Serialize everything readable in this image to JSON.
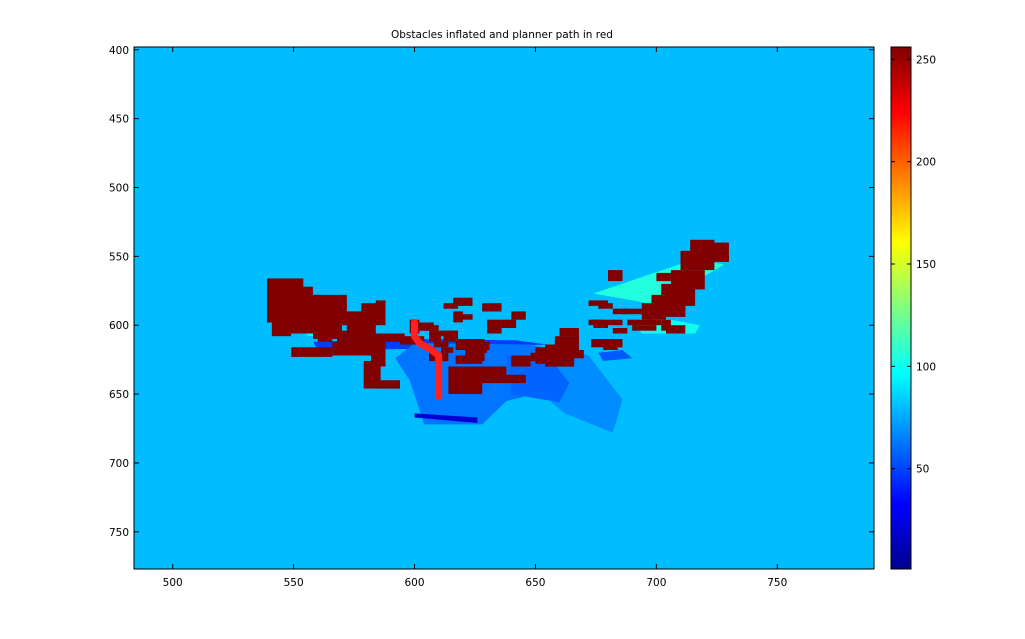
{
  "chart_data": {
    "type": "heatmap",
    "title": "Obstacles inflated and planner path in red",
    "colormap": "jet",
    "background_value": 80,
    "xlim": [
      484,
      790
    ],
    "ylim": [
      398,
      777
    ],
    "y_reversed": true,
    "x_ticks": [
      "500",
      "550",
      "600",
      "650",
      "700",
      "750"
    ],
    "y_ticks": [
      "400",
      "450",
      "500",
      "550",
      "600",
      "650",
      "700",
      "750"
    ],
    "colorbar": {
      "range": [
        1,
        256
      ],
      "ticks": [
        "50",
        "100",
        "150",
        "200",
        "250"
      ]
    },
    "scan_regions": [
      {
        "value": 105,
        "points": [
          [
            674,
            577
          ],
          [
            716,
            552
          ],
          [
            728,
            556
          ],
          [
            700,
            585
          ]
        ]
      },
      {
        "value": 100,
        "points": [
          [
            690,
            597
          ],
          [
            700,
            594
          ],
          [
            718,
            600
          ],
          [
            716,
            606
          ],
          [
            694,
            606
          ]
        ]
      },
      {
        "value": 95,
        "points": [
          [
            545,
            570
          ],
          [
            552,
            568
          ],
          [
            556,
            582
          ],
          [
            546,
            584
          ]
        ]
      },
      {
        "value": 95,
        "points": [
          [
            553,
            602
          ],
          [
            562,
            600
          ],
          [
            568,
            606
          ],
          [
            556,
            608
          ]
        ]
      },
      {
        "value": 48,
        "points": [
          [
            558,
            612
          ],
          [
            606,
            610
          ],
          [
            642,
            611
          ],
          [
            655,
            614
          ],
          [
            612,
            617
          ],
          [
            560,
            618
          ]
        ]
      },
      {
        "value": 62,
        "points": [
          [
            600,
            613
          ],
          [
            648,
            614
          ],
          [
            666,
            622
          ],
          [
            664,
            644
          ],
          [
            638,
            655
          ],
          [
            628,
            672
          ],
          [
            604,
            672
          ],
          [
            598,
            640
          ],
          [
            592,
            624
          ]
        ]
      },
      {
        "value": 68,
        "points": [
          [
            656,
            615
          ],
          [
            672,
            622
          ],
          [
            686,
            654
          ],
          [
            682,
            678
          ],
          [
            662,
            664
          ],
          [
            646,
            640
          ]
        ]
      },
      {
        "value": 58,
        "points": [
          [
            638,
            622
          ],
          [
            656,
            624
          ],
          [
            664,
            642
          ],
          [
            660,
            656
          ],
          [
            640,
            650
          ]
        ]
      },
      {
        "value": 22,
        "points": [
          [
            600,
            664
          ],
          [
            626,
            667
          ],
          [
            626,
            671
          ],
          [
            600,
            667
          ]
        ]
      },
      {
        "value": 55,
        "points": [
          [
            676,
            620
          ],
          [
            686,
            618
          ],
          [
            690,
            624
          ],
          [
            678,
            626
          ]
        ]
      }
    ],
    "obstacles": [
      [
        539,
        566,
        554,
        598
      ],
      [
        541,
        596,
        549,
        608
      ],
      [
        545,
        578,
        564,
        606
      ],
      [
        551,
        572,
        558,
        580
      ],
      [
        555,
        578,
        572,
        596
      ],
      [
        558,
        590,
        570,
        610
      ],
      [
        565,
        584,
        572,
        588
      ],
      [
        569,
        590,
        588,
        600
      ],
      [
        572,
        598,
        584,
        606
      ],
      [
        568,
        606,
        596,
        612
      ],
      [
        566,
        612,
        588,
        622
      ],
      [
        549,
        616,
        566,
        623
      ],
      [
        572,
        612,
        584,
        616
      ],
      [
        578,
        584,
        586,
        590
      ],
      [
        582,
        612,
        588,
        630
      ],
      [
        579,
        626,
        586,
        646
      ],
      [
        584,
        640,
        594,
        646
      ],
      [
        594,
        608,
        604,
        614
      ],
      [
        598,
        596,
        602,
        606
      ],
      [
        601,
        598,
        608,
        604
      ],
      [
        616,
        590,
        620,
        598
      ],
      [
        618,
        592,
        624,
        596
      ],
      [
        617,
        610,
        629,
        618
      ],
      [
        621,
        616,
        629,
        626
      ],
      [
        618,
        624,
        626,
        628
      ],
      [
        617,
        630,
        638,
        640
      ],
      [
        620,
        636,
        628,
        650
      ],
      [
        624,
        636,
        646,
        642
      ],
      [
        617,
        622,
        628,
        628
      ],
      [
        614,
        630,
        620,
        650
      ],
      [
        630,
        596,
        636,
        606
      ],
      [
        636,
        596,
        642,
        602
      ],
      [
        625,
        612,
        631,
        618
      ],
      [
        640,
        622,
        648,
        630
      ],
      [
        650,
        620,
        666,
        628
      ],
      [
        654,
        614,
        668,
        622
      ],
      [
        658,
        608,
        668,
        616
      ],
      [
        660,
        602,
        668,
        608
      ],
      [
        663,
        618,
        670,
        624
      ],
      [
        648,
        620,
        654,
        626
      ],
      [
        654,
        624,
        666,
        630
      ],
      [
        640,
        624,
        645,
        628
      ],
      [
        650,
        616,
        658,
        624
      ],
      [
        673,
        610,
        686,
        616
      ],
      [
        678,
        614,
        684,
        618
      ],
      [
        672,
        582,
        680,
        586
      ],
      [
        676,
        584,
        682,
        588
      ],
      [
        686,
        588,
        696,
        592
      ],
      [
        688,
        596,
        698,
        600
      ],
      [
        690,
        600,
        700,
        604
      ],
      [
        694,
        584,
        702,
        588
      ],
      [
        696,
        596,
        702,
        600
      ],
      [
        697,
        586,
        700,
        590
      ],
      [
        702,
        596,
        706,
        604
      ],
      [
        714,
        538,
        724,
        548
      ],
      [
        710,
        546,
        724,
        560
      ],
      [
        706,
        560,
        720,
        574
      ],
      [
        702,
        570,
        716,
        586
      ],
      [
        698,
        578,
        712,
        594
      ],
      [
        694,
        588,
        704,
        596
      ],
      [
        680,
        560,
        686,
        568
      ],
      [
        700,
        562,
        706,
        568
      ],
      [
        716,
        548,
        730,
        554
      ],
      [
        720,
        540,
        730,
        546
      ],
      [
        724,
        546,
        730,
        552
      ],
      [
        704,
        600,
        712,
        606
      ],
      [
        680,
        596,
        686,
        600
      ],
      [
        682,
        602,
        688,
        606
      ],
      [
        682,
        588,
        688,
        592
      ],
      [
        616,
        580,
        624,
        586
      ],
      [
        628,
        584,
        636,
        590
      ],
      [
        640,
        590,
        646,
        596
      ],
      [
        612,
        584,
        618,
        588
      ],
      [
        584,
        582,
        588,
        590
      ],
      [
        610,
        604,
        618,
        608
      ],
      [
        604,
        600,
        610,
        604
      ],
      [
        606,
        620,
        614,
        626
      ],
      [
        608,
        612,
        614,
        616
      ],
      [
        612,
        604,
        618,
        612
      ],
      [
        626,
        614,
        630,
        620
      ],
      [
        606,
        604,
        611,
        612
      ],
      [
        611,
        616,
        616,
        620
      ],
      [
        566,
        604,
        572,
        610
      ],
      [
        560,
        608,
        566,
        612
      ],
      [
        674,
        596,
        680,
        602
      ],
      [
        672,
        596,
        678,
        600
      ]
    ],
    "path": {
      "color": "#ff2020",
      "points": [
        [
          600,
          598
        ],
        [
          600,
          608
        ],
        [
          602,
          613
        ],
        [
          607,
          618
        ],
        [
          610,
          622
        ],
        [
          610,
          630
        ],
        [
          610,
          652
        ]
      ]
    }
  }
}
